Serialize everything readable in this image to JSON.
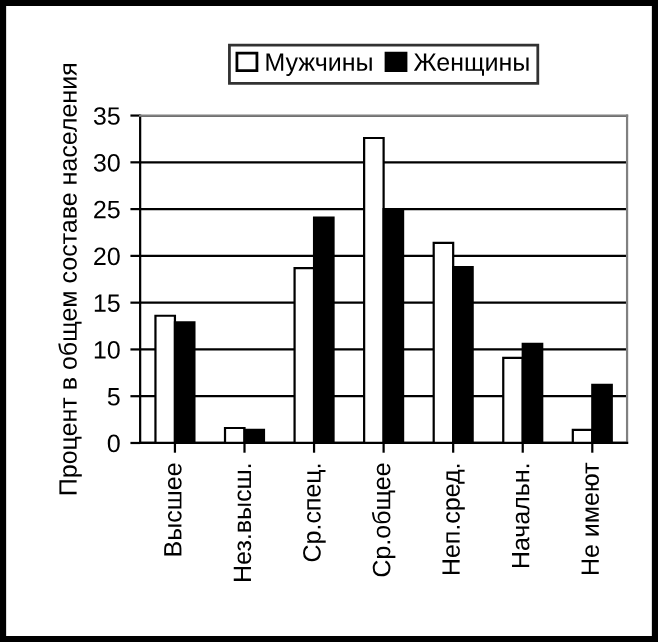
{
  "chart_data": {
    "type": "bar",
    "ylabel": "Процент в общем составе населения",
    "categories": [
      "Высшее",
      "Нез.высш.",
      "Ср.спец.",
      "Ср.общее",
      "Неп.сред.",
      "Начальн.",
      "Не имеют"
    ],
    "series": [
      {
        "name": "Мужчины",
        "color": "#ffffff",
        "values": [
          13.6,
          1.6,
          18.7,
          32.6,
          21.4,
          9.1,
          1.4
        ]
      },
      {
        "name": "Женщины",
        "color": "#000000",
        "values": [
          12.9,
          1.4,
          24.1,
          25.0,
          18.8,
          10.6,
          6.2
        ]
      }
    ],
    "ylim": [
      0,
      35
    ],
    "yticks": [
      0,
      5,
      10,
      15,
      20,
      25,
      30,
      35
    ],
    "grid": "y",
    "legend": "top"
  }
}
